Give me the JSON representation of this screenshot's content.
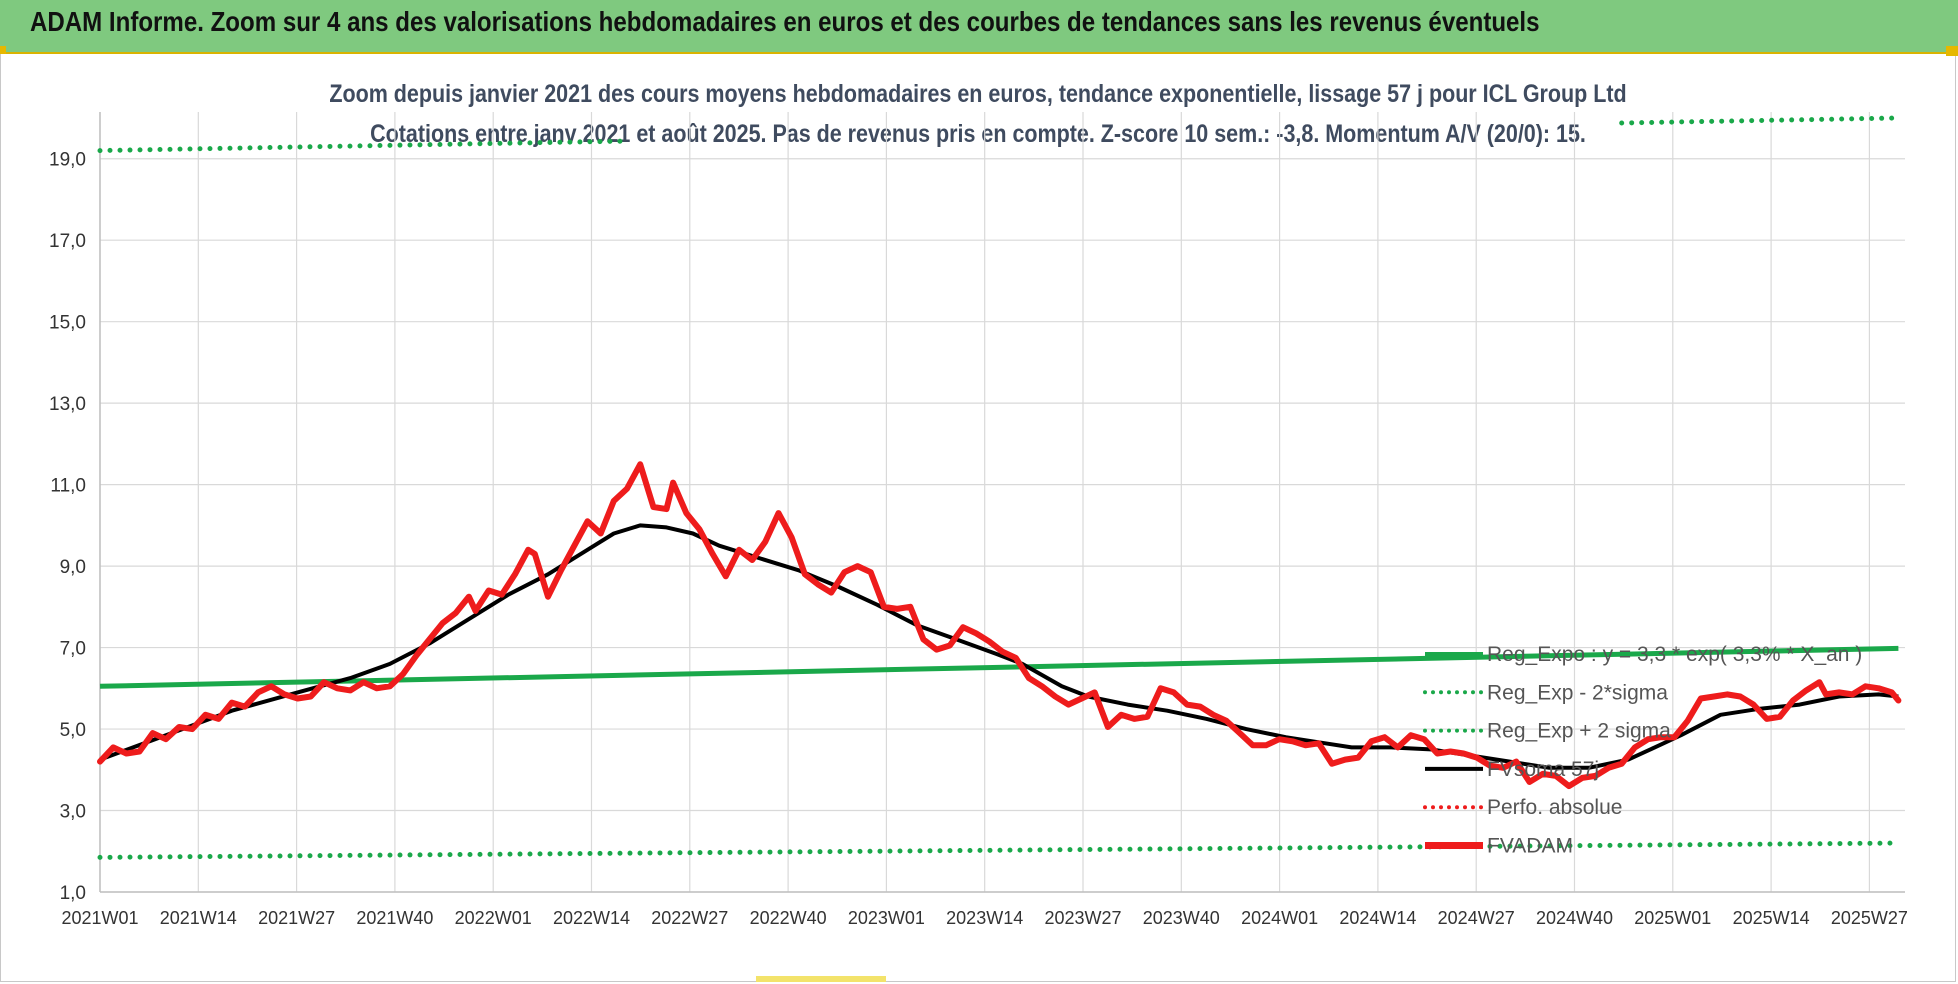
{
  "banner": {
    "title": "ADAM Informe. Zoom sur 4 ans des valorisations hebdomadaires en euros et des courbes de tendances sans les revenus éventuels"
  },
  "colors": {
    "banner_bg": "#7fc97f",
    "price_line": "#ee1c1c",
    "smooth_line": "#000000",
    "trend_line": "#1aa84a",
    "sigma_dots": "#1aa84a",
    "perf_dots": "#ee1c1c",
    "grid": "#d9d9d9"
  },
  "chart_data": {
    "type": "line",
    "title": "Zoom depuis janvier 2021 des cours moyens hebdomadaires en euros, tendance exponentielle, lissage 57 j pour ICL Group Ltd",
    "subtitle": "Cotations entre janv 2021 et août 2025.  Pas de revenus pris en compte. Z-score 10 sem.: -3,8. Momentum A/V (20/0): 15.",
    "xlabel": "",
    "ylabel": "",
    "ylim": [
      1.0,
      20.0
    ],
    "yticks": [
      "19,0",
      "17,0",
      "15,0",
      "13,0",
      "11,0",
      "9,0",
      "7,0",
      "5,0",
      "3,0",
      "1,0"
    ],
    "ytick_values": [
      19,
      17,
      15,
      13,
      11,
      9,
      7,
      5,
      3,
      1
    ],
    "xticks": [
      "2021W01",
      "2021W14",
      "2021W27",
      "2021W40",
      "2022W01",
      "2022W14",
      "2022W27",
      "2022W40",
      "2023W01",
      "2023W14",
      "2023W27",
      "2023W40",
      "2024W01",
      "2024W14",
      "2024W27",
      "2024W40",
      "2025W01",
      "2025W14",
      "2025W27"
    ],
    "x_range_weeks": [
      0,
      237
    ],
    "grid": true,
    "legend_position": "right",
    "legend": [
      {
        "label": "Reg_Expo : y = 3,3 * exp( 3,3% * X_an )",
        "style": "solid",
        "color": "#1aa84a"
      },
      {
        "label": "Reg_Exp - 2*sigma",
        "style": "dotted",
        "color": "#1aa84a"
      },
      {
        "label": "Reg_Exp + 2 sigma",
        "style": "dotted",
        "color": "#1aa84a"
      },
      {
        "label": "FVsoma 57j",
        "style": "solid",
        "color": "#000000"
      },
      {
        "label": "Perfo. absolue",
        "style": "dotted",
        "color": "#ee1c1c"
      },
      {
        "label": "FVADAM",
        "style": "thick",
        "color": "#ee1c1c"
      }
    ],
    "series": [
      {
        "name": "FVADAM",
        "points": [
          [
            0,
            4.2
          ],
          [
            2,
            4.55
          ],
          [
            4,
            4.4
          ],
          [
            6,
            4.45
          ],
          [
            8,
            4.9
          ],
          [
            10,
            4.75
          ],
          [
            12,
            5.05
          ],
          [
            14,
            5.0
          ],
          [
            16,
            5.35
          ],
          [
            18,
            5.25
          ],
          [
            20,
            5.65
          ],
          [
            22,
            5.55
          ],
          [
            24,
            5.9
          ],
          [
            26,
            6.05
          ],
          [
            28,
            5.85
          ],
          [
            30,
            5.75
          ],
          [
            32,
            5.8
          ],
          [
            34,
            6.15
          ],
          [
            36,
            6.0
          ],
          [
            38,
            5.95
          ],
          [
            40,
            6.15
          ],
          [
            42,
            6.0
          ],
          [
            44,
            6.05
          ],
          [
            46,
            6.35
          ],
          [
            48,
            6.8
          ],
          [
            50,
            7.2
          ],
          [
            52,
            7.6
          ],
          [
            54,
            7.85
          ],
          [
            56,
            8.25
          ],
          [
            57,
            7.9
          ],
          [
            59,
            8.4
          ],
          [
            61,
            8.3
          ],
          [
            63,
            8.8
          ],
          [
            65,
            9.4
          ],
          [
            66,
            9.3
          ],
          [
            68,
            8.25
          ],
          [
            70,
            8.9
          ],
          [
            72,
            9.5
          ],
          [
            74,
            10.1
          ],
          [
            76,
            9.8
          ],
          [
            78,
            10.6
          ],
          [
            80,
            10.9
          ],
          [
            82,
            11.5
          ],
          [
            84,
            10.45
          ],
          [
            86,
            10.4
          ],
          [
            87,
            11.05
          ],
          [
            89,
            10.3
          ],
          [
            91,
            9.9
          ],
          [
            93,
            9.3
          ],
          [
            95,
            8.75
          ],
          [
            97,
            9.4
          ],
          [
            99,
            9.15
          ],
          [
            101,
            9.6
          ],
          [
            103,
            10.3
          ],
          [
            105,
            9.7
          ],
          [
            107,
            8.8
          ],
          [
            109,
            8.55
          ],
          [
            111,
            8.35
          ],
          [
            113,
            8.85
          ],
          [
            115,
            9.0
          ],
          [
            117,
            8.85
          ],
          [
            119,
            8.0
          ],
          [
            121,
            7.95
          ],
          [
            123,
            8.0
          ],
          [
            125,
            7.2
          ],
          [
            127,
            6.95
          ],
          [
            129,
            7.05
          ],
          [
            131,
            7.5
          ],
          [
            133,
            7.35
          ],
          [
            135,
            7.15
          ],
          [
            137,
            6.9
          ],
          [
            139,
            6.75
          ],
          [
            141,
            6.25
          ],
          [
            143,
            6.05
          ],
          [
            145,
            5.8
          ],
          [
            147,
            5.6
          ],
          [
            149,
            5.75
          ],
          [
            151,
            5.9
          ],
          [
            153,
            5.05
          ],
          [
            155,
            5.35
          ],
          [
            157,
            5.25
          ],
          [
            159,
            5.3
          ],
          [
            161,
            6.0
          ],
          [
            163,
            5.9
          ],
          [
            165,
            5.6
          ],
          [
            167,
            5.55
          ],
          [
            169,
            5.35
          ],
          [
            171,
            5.2
          ],
          [
            173,
            4.9
          ],
          [
            175,
            4.6
          ],
          [
            177,
            4.6
          ],
          [
            179,
            4.75
          ],
          [
            181,
            4.7
          ],
          [
            183,
            4.6
          ],
          [
            185,
            4.65
          ],
          [
            187,
            4.15
          ],
          [
            189,
            4.25
          ],
          [
            191,
            4.3
          ],
          [
            193,
            4.7
          ],
          [
            195,
            4.8
          ],
          [
            197,
            4.55
          ],
          [
            199,
            4.85
          ],
          [
            201,
            4.75
          ],
          [
            203,
            4.4
          ],
          [
            205,
            4.45
          ],
          [
            207,
            4.4
          ],
          [
            209,
            4.3
          ],
          [
            211,
            4.1
          ],
          [
            213,
            4.05
          ],
          [
            215,
            4.2
          ],
          [
            217,
            3.7
          ],
          [
            219,
            3.9
          ],
          [
            221,
            3.85
          ],
          [
            223,
            3.6
          ],
          [
            225,
            3.8
          ],
          [
            227,
            3.85
          ],
          [
            229,
            4.05
          ],
          [
            231,
            4.15
          ],
          [
            233,
            4.55
          ],
          [
            235,
            4.75
          ],
          [
            237,
            4.8
          ],
          [
            239,
            4.8
          ],
          [
            241,
            5.2
          ],
          [
            243,
            5.75
          ],
          [
            245,
            5.8
          ],
          [
            247,
            5.85
          ],
          [
            249,
            5.8
          ],
          [
            251,
            5.6
          ],
          [
            253,
            5.25
          ],
          [
            255,
            5.3
          ],
          [
            257,
            5.7
          ],
          [
            259,
            5.95
          ],
          [
            261,
            6.15
          ],
          [
            262,
            5.85
          ],
          [
            264,
            5.9
          ],
          [
            266,
            5.85
          ],
          [
            268,
            6.05
          ],
          [
            270,
            6.0
          ],
          [
            272,
            5.9
          ],
          [
            273,
            5.7
          ]
        ]
      },
      {
        "name": "FVsoma 57j",
        "points": [
          [
            0,
            4.25
          ],
          [
            10,
            4.85
          ],
          [
            20,
            5.45
          ],
          [
            30,
            5.9
          ],
          [
            38,
            6.25
          ],
          [
            44,
            6.6
          ],
          [
            50,
            7.1
          ],
          [
            56,
            7.7
          ],
          [
            62,
            8.3
          ],
          [
            68,
            8.8
          ],
          [
            74,
            9.4
          ],
          [
            78,
            9.8
          ],
          [
            82,
            10.0
          ],
          [
            86,
            9.95
          ],
          [
            90,
            9.8
          ],
          [
            94,
            9.5
          ],
          [
            100,
            9.2
          ],
          [
            106,
            8.9
          ],
          [
            112,
            8.5
          ],
          [
            118,
            8.05
          ],
          [
            124,
            7.55
          ],
          [
            130,
            7.2
          ],
          [
            136,
            6.85
          ],
          [
            140,
            6.6
          ],
          [
            146,
            6.05
          ],
          [
            150,
            5.8
          ],
          [
            156,
            5.6
          ],
          [
            162,
            5.45
          ],
          [
            168,
            5.25
          ],
          [
            174,
            5.0
          ],
          [
            180,
            4.8
          ],
          [
            186,
            4.65
          ],
          [
            190,
            4.55
          ],
          [
            196,
            4.55
          ],
          [
            202,
            4.5
          ],
          [
            208,
            4.35
          ],
          [
            214,
            4.2
          ],
          [
            220,
            4.05
          ],
          [
            226,
            4.05
          ],
          [
            232,
            4.25
          ],
          [
            236,
            4.55
          ],
          [
            240,
            4.85
          ],
          [
            246,
            5.35
          ],
          [
            252,
            5.5
          ],
          [
            258,
            5.6
          ],
          [
            264,
            5.8
          ],
          [
            270,
            5.85
          ],
          [
            273,
            5.8
          ]
        ]
      },
      {
        "name": "Reg_Expo : y = 3,3 * exp( 3,3% * X_an )",
        "points": [
          [
            0,
            6.05
          ],
          [
            273,
            6.98
          ]
        ]
      },
      {
        "name": "Reg_Exp - 2*sigma",
        "points": [
          [
            0,
            1.85
          ],
          [
            273,
            2.2
          ]
        ]
      },
      {
        "name": "Reg_Exp + 2 sigma",
        "points": [
          [
            0,
            19.2
          ],
          [
            273,
            20.0
          ]
        ]
      }
    ]
  }
}
